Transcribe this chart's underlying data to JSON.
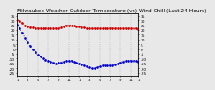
{
  "title": "Milwaukee Weather Outdoor Temperature (vs) Wind Chill (Last 24 Hours)",
  "title_fontsize": 4.2,
  "background_color": "#e8e8e8",
  "plot_bg_color": "#e8e8e8",
  "grid_color": "#aaaaaa",
  "ylim": [
    -28,
    38
  ],
  "xlim": [
    0,
    47
  ],
  "yticks": [
    -25,
    -20,
    -15,
    -10,
    -5,
    0,
    5,
    10,
    15,
    20,
    25,
    30,
    35
  ],
  "ytick_fontsize": 3.2,
  "xtick_fontsize": 2.8,
  "temp_color": "#cc0000",
  "windchill_color": "#0000cc",
  "temp_data": [
    30,
    29,
    27,
    25,
    24,
    23,
    23,
    22,
    22,
    22,
    22,
    22,
    22,
    22,
    22,
    22,
    22,
    23,
    24,
    25,
    25,
    25,
    25,
    24,
    24,
    23,
    23,
    22,
    22,
    22,
    22,
    22,
    22,
    22,
    22,
    22,
    22,
    22,
    22,
    22,
    22,
    22,
    22,
    22,
    22,
    22,
    22,
    21
  ],
  "windchill_data": [
    26,
    22,
    17,
    12,
    7,
    3,
    0,
    -3,
    -6,
    -8,
    -10,
    -11,
    -12,
    -13,
    -14,
    -15,
    -14,
    -14,
    -13,
    -12,
    -12,
    -12,
    -13,
    -14,
    -15,
    -16,
    -17,
    -18,
    -19,
    -20,
    -20,
    -19,
    -18,
    -17,
    -17,
    -17,
    -17,
    -17,
    -16,
    -15,
    -14,
    -13,
    -12,
    -12,
    -12,
    -12,
    -12,
    -13
  ],
  "xtick_positions": [
    0,
    4,
    8,
    12,
    16,
    20,
    24,
    28,
    32,
    36,
    40,
    44,
    47
  ],
  "xtick_labels": [
    "1",
    "3",
    "5",
    "7",
    "9",
    "11",
    "1",
    "3",
    "5",
    "7",
    "9",
    "11",
    "1"
  ],
  "right_ytick_labels": [
    "35",
    "30",
    "25",
    "20",
    "15",
    "10",
    "5",
    "0",
    "-5",
    "-10",
    "-15",
    "-20",
    "-25"
  ]
}
